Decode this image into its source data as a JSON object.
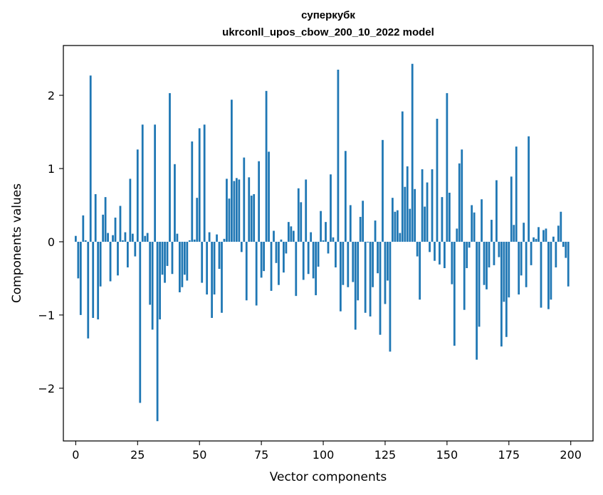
{
  "chart_data": {
    "type": "bar",
    "title": "суперкубк\nukrconll_upos_cbow_200_10_2022 model",
    "title_lines": [
      "суперкубк",
      "ukrconll_upos_cbow_200_10_2022 model"
    ],
    "xlabel": "Vector components",
    "ylabel": "Components values",
    "xlim": [
      -5,
      209
    ],
    "ylim": [
      -2.72,
      2.68
    ],
    "xticks": [
      0,
      25,
      50,
      75,
      100,
      125,
      150,
      175,
      200
    ],
    "xtick_labels": [
      "0",
      "25",
      "50",
      "75",
      "100",
      "125",
      "150",
      "175",
      "200"
    ],
    "yticks": [
      -2,
      -1,
      0,
      1,
      2
    ],
    "ytick_labels": [
      "−2",
      "−1",
      "0",
      "1",
      "2"
    ],
    "grid": false,
    "bar_color": "#1f77b4",
    "x": [
      0,
      1,
      2,
      3,
      4,
      5,
      6,
      7,
      8,
      9,
      10,
      11,
      12,
      13,
      14,
      15,
      16,
      17,
      18,
      19,
      20,
      21,
      22,
      23,
      24,
      25,
      26,
      27,
      28,
      29,
      30,
      31,
      32,
      33,
      34,
      35,
      36,
      37,
      38,
      39,
      40,
      41,
      42,
      43,
      44,
      45,
      46,
      47,
      48,
      49,
      50,
      51,
      52,
      53,
      54,
      55,
      56,
      57,
      58,
      59,
      60,
      61,
      62,
      63,
      64,
      65,
      66,
      67,
      68,
      69,
      70,
      71,
      72,
      73,
      74,
      75,
      76,
      77,
      78,
      79,
      80,
      81,
      82,
      83,
      84,
      85,
      86,
      87,
      88,
      89,
      90,
      91,
      92,
      93,
      94,
      95,
      96,
      97,
      98,
      99,
      100,
      101,
      102,
      103,
      104,
      105,
      106,
      107,
      108,
      109,
      110,
      111,
      112,
      113,
      114,
      115,
      116,
      117,
      118,
      119,
      120,
      121,
      122,
      123,
      124,
      125,
      126,
      127,
      128,
      129,
      130,
      131,
      132,
      133,
      134,
      135,
      136,
      137,
      138,
      139,
      140,
      141,
      142,
      143,
      144,
      145,
      146,
      147,
      148,
      149,
      150,
      151,
      152,
      153,
      154,
      155,
      156,
      157,
      158,
      159,
      160,
      161,
      162,
      163,
      164,
      165,
      166,
      167,
      168,
      169,
      170,
      171,
      172,
      173,
      174,
      175,
      176,
      177,
      178,
      179,
      180,
      181,
      182,
      183,
      184,
      185,
      186,
      187,
      188,
      189,
      190,
      191,
      192,
      193,
      194,
      195,
      196,
      197,
      198,
      199
    ],
    "values": [
      0.08,
      -0.5,
      -1.0,
      0.36,
      0.02,
      -1.32,
      2.27,
      -1.04,
      0.65,
      -1.06,
      -0.61,
      0.37,
      0.61,
      0.12,
      -0.54,
      0.09,
      0.33,
      -0.46,
      0.49,
      0.02,
      0.13,
      -0.35,
      0.86,
      0.11,
      -0.2,
      1.26,
      -2.2,
      1.6,
      0.08,
      0.12,
      -0.86,
      -1.2,
      1.6,
      -2.45,
      -1.06,
      -0.45,
      -0.56,
      -0.33,
      2.03,
      -0.44,
      1.06,
      0.11,
      -0.69,
      -0.62,
      -0.45,
      -0.53,
      0.02,
      1.37,
      0.03,
      0.6,
      1.55,
      -0.56,
      1.6,
      -0.72,
      0.13,
      -1.04,
      -0.72,
      0.1,
      -0.37,
      -0.97,
      0.04,
      0.86,
      0.59,
      1.94,
      0.83,
      0.87,
      0.85,
      -0.14,
      1.15,
      -0.8,
      0.88,
      0.63,
      0.65,
      -0.87,
      1.1,
      -0.49,
      -0.4,
      2.06,
      1.23,
      -0.67,
      0.15,
      -0.29,
      -0.59,
      0.03,
      -0.42,
      -0.16,
      0.27,
      0.21,
      0.15,
      -0.74,
      0.73,
      0.54,
      -0.52,
      0.85,
      -0.44,
      0.13,
      -0.5,
      -0.73,
      -0.34,
      0.42,
      0.02,
      0.27,
      -0.16,
      0.92,
      0.06,
      -0.35,
      2.35,
      -0.95,
      -0.59,
      1.24,
      -0.62,
      0.5,
      -0.55,
      -1.2,
      -0.8,
      0.34,
      0.56,
      -0.97,
      -0.01,
      -1.02,
      -0.62,
      0.29,
      -0.43,
      -1.27,
      1.39,
      -0.85,
      -0.53,
      -1.5,
      0.6,
      0.41,
      0.43,
      0.12,
      1.78,
      0.75,
      1.03,
      0.45,
      2.43,
      0.72,
      -0.2,
      -0.79,
      0.99,
      0.48,
      0.81,
      -0.14,
      0.99,
      -0.26,
      1.68,
      -0.31,
      0.61,
      -0.36,
      2.03,
      0.67,
      -0.58,
      -1.42,
      0.18,
      1.07,
      1.26,
      -0.93,
      -0.36,
      -0.08,
      0.5,
      0.4,
      -1.61,
      -1.16,
      0.58,
      -0.59,
      -0.65,
      -0.35,
      0.3,
      -0.32,
      0.84,
      -0.21,
      -1.43,
      -0.82,
      -1.3,
      -0.76,
      0.89,
      0.23,
      1.3,
      -0.72,
      -0.46,
      0.26,
      -0.62,
      1.44,
      -0.32,
      0.06,
      0.04,
      0.2,
      -0.9,
      0.16,
      0.18,
      -0.92,
      -0.79,
      0.07,
      -0.35,
      0.22,
      0.41,
      -0.07,
      -0.22,
      -0.61
    ]
  }
}
